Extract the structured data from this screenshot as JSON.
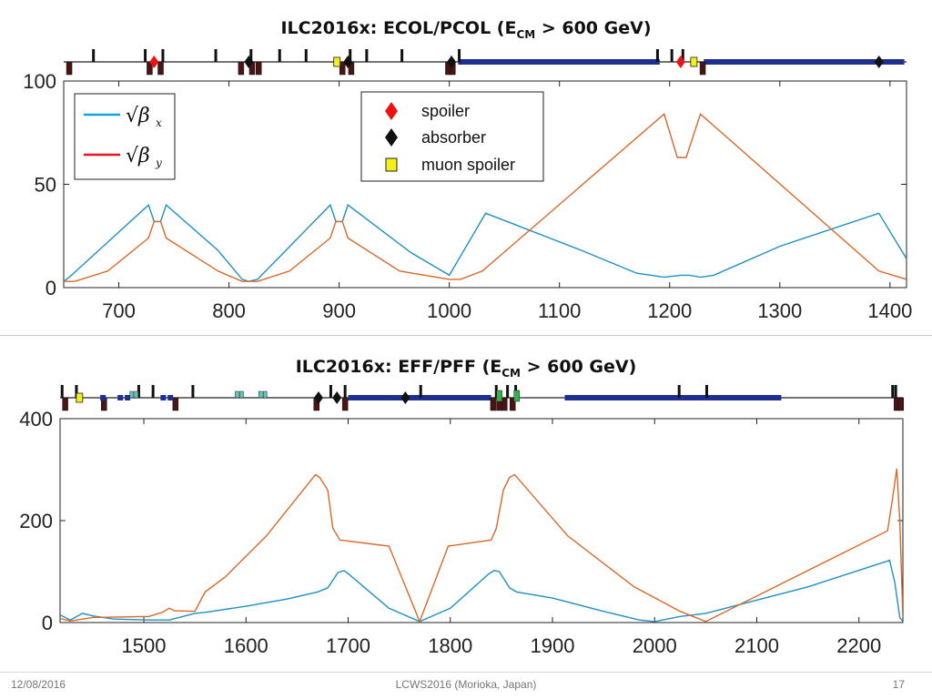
{
  "slide": {
    "footer_date": "12/08/2016",
    "footer_conference": "LCWS2016 (Morioka, Japan)",
    "footer_page": "17"
  },
  "colors": {
    "beta_x": "#1f8fc4",
    "beta_y": "#d9692a",
    "legend_beta_x": "#12a3dc",
    "legend_beta_y": "#e8141c",
    "spoiler": "#ee1111",
    "absorber": "#111111",
    "muon_spoiler": "#f4ef1a",
    "magnet_dark": "#4a1414",
    "beamline_blue": "#1f2f8f",
    "green_element": "#33b04a",
    "cyan_element": "#5fc7c0"
  },
  "legends": {
    "beta_x_label": "√β",
    "beta_x_sub": "x",
    "beta_y_label": "√β",
    "beta_y_sub": "y",
    "spoiler": "spoiler",
    "absorber": "absorber",
    "muon_spoiler": "muon spoiler"
  },
  "chart_data": [
    {
      "type": "line",
      "title_main": "ILC2016x: ECOL/PCOL (E",
      "title_sub": "CM",
      "title_tail": " > 600 GeV)",
      "xlabel": "",
      "ylabel": "",
      "xlim": [
        650,
        1415
      ],
      "ylim": [
        0,
        100
      ],
      "xticks": [
        700,
        800,
        900,
        1000,
        1100,
        1200,
        1300,
        1400
      ],
      "yticks": [
        0,
        50,
        100
      ],
      "grid": false,
      "series": [
        {
          "key": "beta_x",
          "points": [
            [
              650,
              3
            ],
            [
              655,
              5
            ],
            [
              727,
              40
            ],
            [
              732,
              32
            ],
            [
              738,
              32
            ],
            [
              743,
              40
            ],
            [
              790,
              18
            ],
            [
              812,
              4
            ],
            [
              818,
              3
            ],
            [
              826,
              4
            ],
            [
              892,
              40
            ],
            [
              897,
              32
            ],
            [
              903,
              32
            ],
            [
              908,
              40
            ],
            [
              965,
              17
            ],
            [
              1000,
              6
            ],
            [
              1033,
              36
            ],
            [
              1120,
              18
            ],
            [
              1170,
              7
            ],
            [
              1195,
              5
            ],
            [
              1210,
              6
            ],
            [
              1218,
              6
            ],
            [
              1228,
              5
            ],
            [
              1240,
              6
            ],
            [
              1300,
              20
            ],
            [
              1390,
              36
            ],
            [
              1415,
              14
            ]
          ]
        },
        {
          "key": "beta_y",
          "points": [
            [
              650,
              3
            ],
            [
              660,
              3
            ],
            [
              690,
              8
            ],
            [
              727,
              24
            ],
            [
              732,
              32
            ],
            [
              738,
              32
            ],
            [
              743,
              24
            ],
            [
              790,
              8
            ],
            [
              812,
              3
            ],
            [
              826,
              3
            ],
            [
              855,
              8
            ],
            [
              892,
              24
            ],
            [
              897,
              32
            ],
            [
              903,
              32
            ],
            [
              908,
              24
            ],
            [
              955,
              8
            ],
            [
              1000,
              4
            ],
            [
              1010,
              4
            ],
            [
              1030,
              8
            ],
            [
              1195,
              84
            ],
            [
              1207,
              63
            ],
            [
              1215,
              63
            ],
            [
              1228,
              84
            ],
            [
              1390,
              8
            ],
            [
              1415,
              4
            ]
          ]
        }
      ],
      "beamline": {
        "xlim": [
          650,
          1415
        ],
        "magnets_top": [
          677,
          724,
          740,
          788,
          820,
          846,
          870,
          910,
          925,
          957,
          1009,
          1189,
          1202,
          1212
        ],
        "magnets_bottom": [
          655,
          728,
          738,
          811,
          821,
          827,
          903,
          911,
          999,
          1003,
          1230
        ],
        "blue_segments": [
          [
            1008,
            1191
          ],
          [
            1231,
            1413
          ]
        ],
        "spoilers": [
          732,
          1210
        ],
        "absorbers": [
          818,
          908,
          1002,
          1390
        ],
        "muon_spoilers": [
          898,
          1222
        ]
      }
    },
    {
      "type": "line",
      "title_main": "ILC2016x: EFF/PFF (E",
      "title_sub": "CM",
      "title_tail": " > 600 GeV)",
      "xlabel": "",
      "ylabel": "",
      "xlim": [
        1418,
        2243
      ],
      "ylim": [
        0,
        400
      ],
      "xticks": [
        1500,
        1600,
        1700,
        1800,
        1900,
        2000,
        2100,
        2200
      ],
      "yticks": [
        0,
        200,
        400
      ],
      "grid": false,
      "series": [
        {
          "key": "beta_x",
          "points": [
            [
              1418,
              15
            ],
            [
              1428,
              5
            ],
            [
              1440,
              18
            ],
            [
              1450,
              13
            ],
            [
              1470,
              7
            ],
            [
              1505,
              5
            ],
            [
              1525,
              5
            ],
            [
              1550,
              18
            ],
            [
              1560,
              20
            ],
            [
              1600,
              32
            ],
            [
              1640,
              46
            ],
            [
              1670,
              60
            ],
            [
              1680,
              68
            ],
            [
              1690,
              98
            ],
            [
              1696,
              102
            ],
            [
              1700,
              96
            ],
            [
              1740,
              28
            ],
            [
              1770,
              2
            ],
            [
              1800,
              28
            ],
            [
              1838,
              96
            ],
            [
              1843,
              102
            ],
            [
              1848,
              100
            ],
            [
              1858,
              68
            ],
            [
              1865,
              60
            ],
            [
              1900,
              48
            ],
            [
              1950,
              22
            ],
            [
              1985,
              5
            ],
            [
              2000,
              2
            ],
            [
              2025,
              12
            ],
            [
              2050,
              18
            ],
            [
              2150,
              70
            ],
            [
              2230,
              122
            ],
            [
              2235,
              80
            ],
            [
              2240,
              10
            ],
            [
              2243,
              2
            ]
          ]
        },
        {
          "key": "beta_y",
          "points": [
            [
              1418,
              8
            ],
            [
              1428,
              3
            ],
            [
              1450,
              10
            ],
            [
              1505,
              12
            ],
            [
              1518,
              20
            ],
            [
              1525,
              28
            ],
            [
              1530,
              23
            ],
            [
              1550,
              22
            ],
            [
              1560,
              60
            ],
            [
              1580,
              90
            ],
            [
              1620,
              170
            ],
            [
              1668,
              290
            ],
            [
              1672,
              285
            ],
            [
              1680,
              260
            ],
            [
              1685,
              185
            ],
            [
              1692,
              162
            ],
            [
              1740,
              150
            ],
            [
              1770,
              2
            ],
            [
              1798,
              150
            ],
            [
              1840,
              162
            ],
            [
              1845,
              185
            ],
            [
              1852,
              260
            ],
            [
              1858,
              285
            ],
            [
              1863,
              290
            ],
            [
              1915,
              170
            ],
            [
              1980,
              70
            ],
            [
              2025,
              22
            ],
            [
              2050,
              2
            ],
            [
              2228,
              180
            ],
            [
              2233,
              245
            ],
            [
              2237,
              302
            ],
            [
              2240,
              200
            ],
            [
              2243,
              10
            ]
          ]
        }
      ],
      "beamline": {
        "xlim": [
          1418,
          2243
        ],
        "magnets_top": [
          1420,
          1434,
          1495,
          1509,
          1548,
          1683,
          1697,
          1771,
          1845,
          1856,
          1864,
          2024,
          2051,
          2233,
          2236
        ],
        "magnets_bottom": [
          1423,
          1461,
          1531,
          1669,
          1697,
          1842,
          1848,
          1853,
          1861,
          2237,
          2241
        ],
        "blue_segments": [
          [
            1700,
            1840
          ],
          [
            1912,
            2124
          ]
        ],
        "spoilers": [],
        "absorbers": [
          1671,
          1689,
          1756
        ],
        "muon_spoilers": [
          1437
        ],
        "green_elements": [
          1848,
          1865
        ],
        "cyan_elements": [
          1490,
          1593,
          1616
        ],
        "small_dark": [
          1460,
          1477,
          1484,
          1519,
          1526
        ]
      }
    }
  ]
}
